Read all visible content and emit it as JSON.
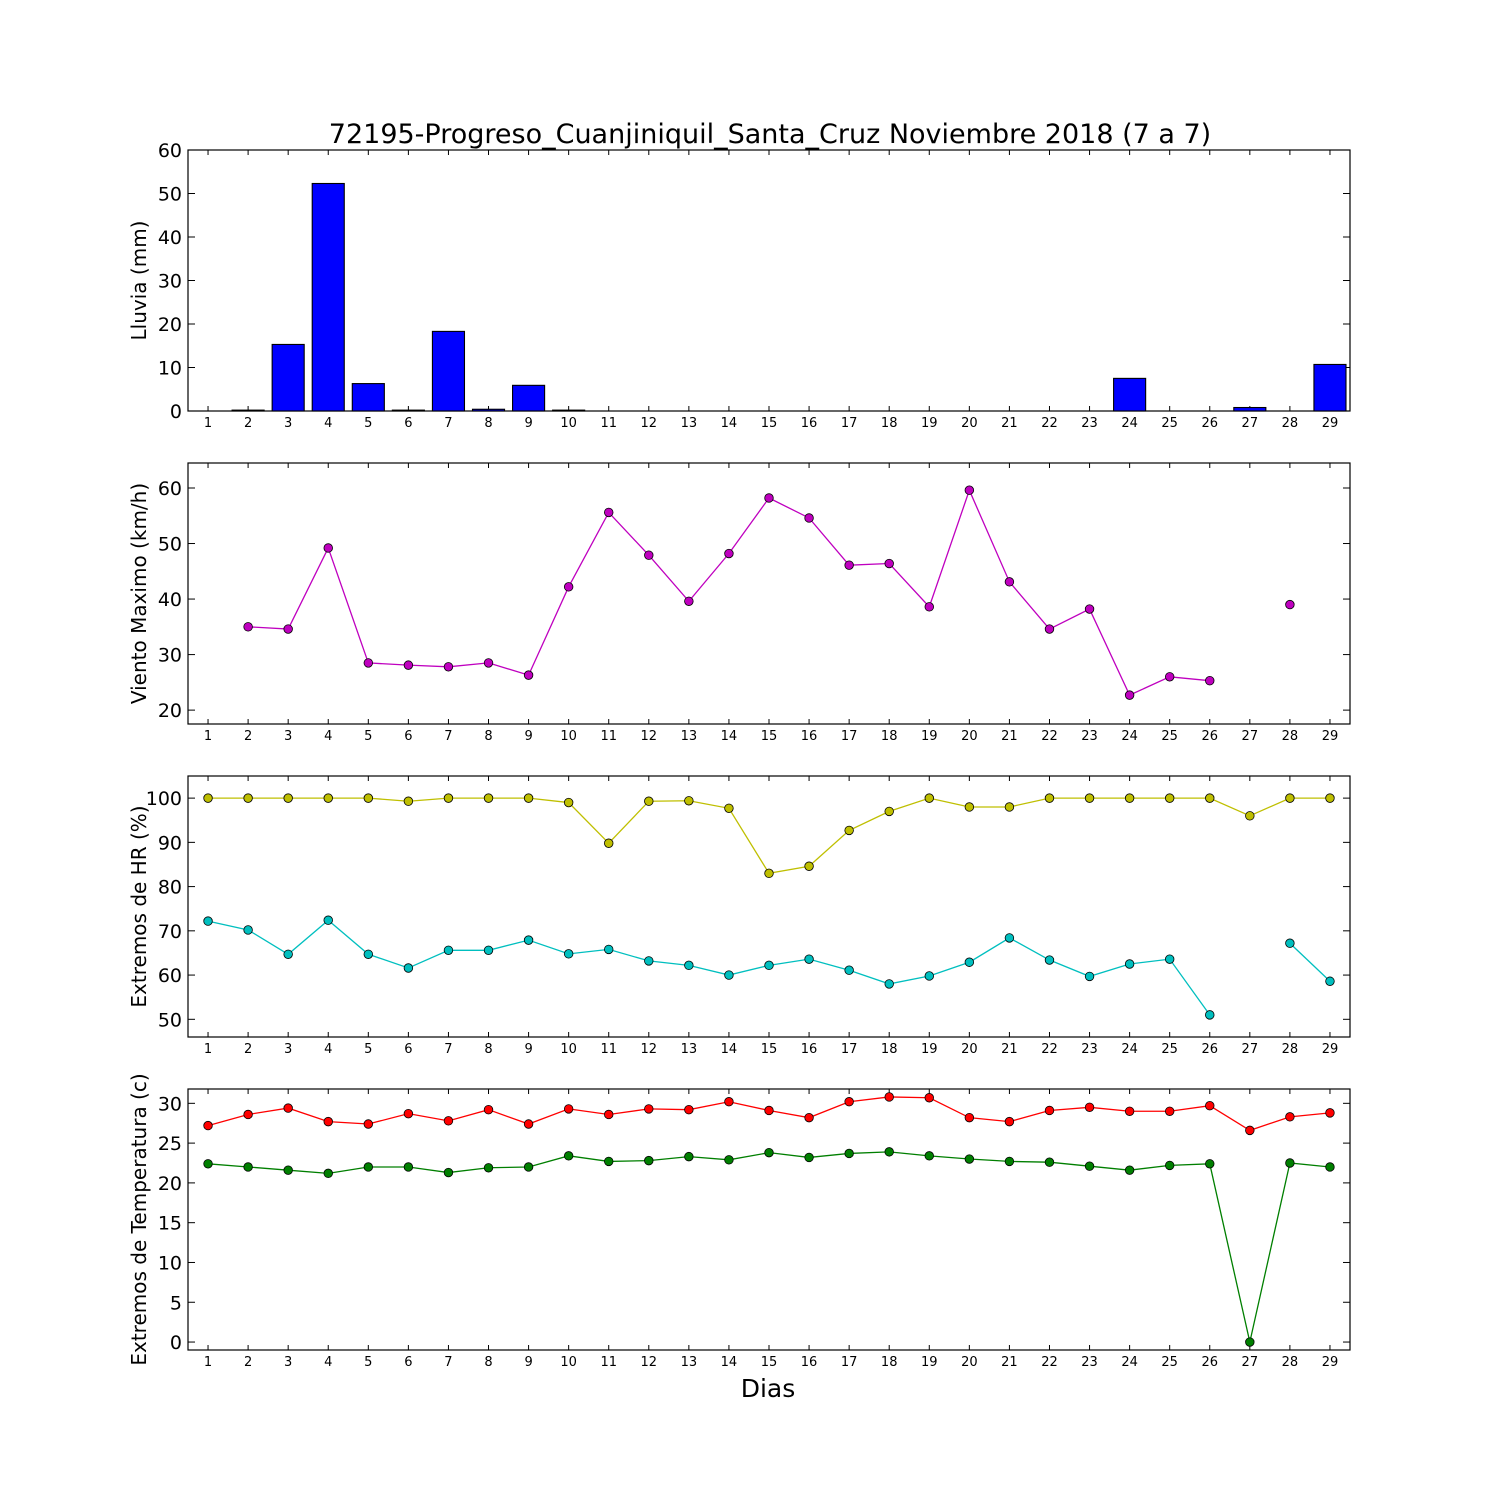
{
  "title": "72195-Progreso_Cuanjiniquil_Santa_Cruz Noviembre 2018  (7 a 7)",
  "xlabel": "Dias",
  "chart_data": [
    {
      "type": "bar",
      "ylabel": "Lluvia (mm)",
      "x": [
        1,
        2,
        3,
        4,
        5,
        6,
        7,
        8,
        9,
        10,
        11,
        12,
        13,
        14,
        15,
        16,
        17,
        18,
        19,
        20,
        21,
        22,
        23,
        24,
        25,
        26,
        27,
        28,
        29
      ],
      "xlim": [
        0.5,
        29.5
      ],
      "ylim": [
        0,
        60
      ],
      "yticks": [
        0,
        10,
        20,
        30,
        40,
        50,
        60
      ],
      "series": [
        {
          "color": "#0000ff",
          "values": [
            0,
            0.2,
            15.3,
            52.3,
            6.3,
            0.2,
            18.3,
            0.4,
            5.9,
            0.2,
            0,
            0,
            0,
            0,
            0,
            0,
            0,
            0,
            0,
            0,
            0,
            0,
            0,
            7.5,
            0,
            0,
            0.8,
            0,
            10.7
          ]
        }
      ]
    },
    {
      "type": "line",
      "ylabel": "Viento Maximo (km/h)",
      "x": [
        1,
        2,
        3,
        4,
        5,
        6,
        7,
        8,
        9,
        10,
        11,
        12,
        13,
        14,
        15,
        16,
        17,
        18,
        19,
        20,
        21,
        22,
        23,
        24,
        25,
        26,
        27,
        28,
        29
      ],
      "xlim": [
        0.5,
        29.5
      ],
      "ylim": [
        17.5,
        64.5
      ],
      "yticks": [
        20,
        30,
        40,
        50,
        60
      ],
      "series": [
        {
          "color": "#bf00bf",
          "values": [
            null,
            35.0,
            34.6,
            49.2,
            28.5,
            28.1,
            27.8,
            28.5,
            26.3,
            42.2,
            55.6,
            47.9,
            39.6,
            48.2,
            58.2,
            54.6,
            46.1,
            46.4,
            38.6,
            59.6,
            43.1,
            34.6,
            38.2,
            22.7,
            26.0,
            25.3,
            null,
            39.0,
            null
          ]
        }
      ]
    },
    {
      "type": "line",
      "ylabel": "Extremos de HR (%)",
      "x": [
        1,
        2,
        3,
        4,
        5,
        6,
        7,
        8,
        9,
        10,
        11,
        12,
        13,
        14,
        15,
        16,
        17,
        18,
        19,
        20,
        21,
        22,
        23,
        24,
        25,
        26,
        27,
        28,
        29
      ],
      "xlim": [
        0.5,
        29.5
      ],
      "ylim": [
        46,
        105
      ],
      "yticks": [
        50,
        60,
        70,
        80,
        90,
        100
      ],
      "series": [
        {
          "color": "#bfbf00",
          "values": [
            100,
            100,
            100,
            100,
            100,
            99.3,
            100,
            100,
            100,
            99,
            89.8,
            99.3,
            99.4,
            97.7,
            83,
            84.6,
            92.7,
            97,
            100,
            98,
            98,
            100,
            100,
            100,
            100,
            100,
            96,
            100,
            100
          ]
        },
        {
          "color": "#00bfbf",
          "values": [
            72.2,
            70.2,
            64.7,
            72.4,
            64.7,
            61.6,
            65.6,
            65.6,
            67.9,
            64.8,
            65.8,
            63.2,
            62.2,
            60,
            62.2,
            63.6,
            61.1,
            58,
            59.8,
            62.9,
            68.4,
            63.4,
            59.7,
            62.5,
            63.6,
            51,
            null,
            67.2,
            58.6
          ]
        }
      ]
    },
    {
      "type": "line",
      "ylabel": "Extremos de Temperatura (c)",
      "x": [
        1,
        2,
        3,
        4,
        5,
        6,
        7,
        8,
        9,
        10,
        11,
        12,
        13,
        14,
        15,
        16,
        17,
        18,
        19,
        20,
        21,
        22,
        23,
        24,
        25,
        26,
        27,
        28,
        29
      ],
      "xlim": [
        0.5,
        29.5
      ],
      "ylim": [
        -1,
        31.8
      ],
      "yticks": [
        0,
        5,
        10,
        15,
        20,
        25,
        30
      ],
      "series": [
        {
          "color": "#ff0000",
          "values": [
            27.2,
            28.6,
            29.4,
            27.7,
            27.4,
            28.7,
            27.8,
            29.2,
            27.4,
            29.3,
            28.6,
            29.3,
            29.2,
            30.2,
            29.1,
            28.2,
            30.2,
            30.8,
            30.7,
            28.2,
            27.7,
            29.1,
            29.5,
            29,
            29,
            29.7,
            26.6,
            28.3,
            28.8
          ]
        },
        {
          "color": "#007f00",
          "values": [
            22.4,
            22,
            21.6,
            21.2,
            22,
            22,
            21.3,
            21.9,
            22,
            23.4,
            22.7,
            22.8,
            23.3,
            22.9,
            23.8,
            23.2,
            23.7,
            23.9,
            23.4,
            23,
            22.7,
            22.6,
            22.1,
            21.6,
            22.2,
            22.4,
            0,
            22.5,
            22
          ]
        }
      ]
    }
  ]
}
